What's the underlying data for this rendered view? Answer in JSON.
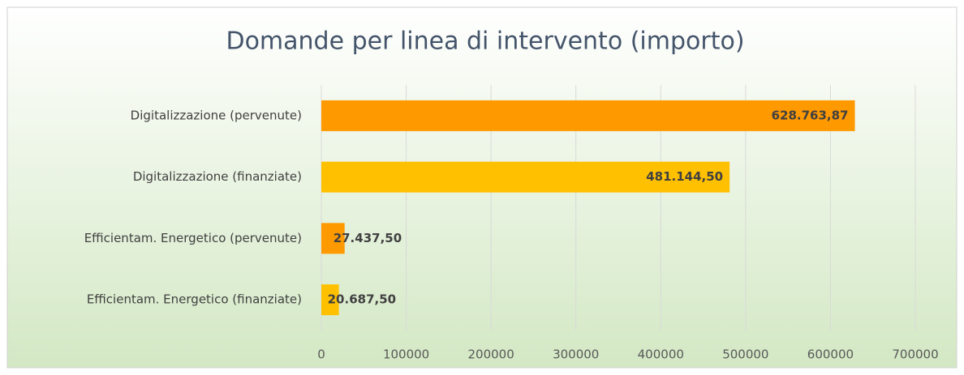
{
  "chart_data": {
    "type": "hbar",
    "title": "Domande per linea di intervento (importo)",
    "categories": [
      "Digitalizzazione (pervenute)",
      "Digitalizzazione (finanziate)",
      "Efficientam. Energetico (pervenute)",
      "Efficientam. Energetico (finanziate)"
    ],
    "values": [
      628763.87,
      481144.5,
      27437.5,
      20687.5
    ],
    "value_labels": [
      "628.763,87",
      "481.144,50",
      "27.437,50",
      "20.687,50"
    ],
    "colors": [
      "#ff9900",
      "#ffc000",
      "#ff9900",
      "#ffc000"
    ],
    "xlim": [
      0,
      700000
    ],
    "xticks": [
      0,
      100000,
      200000,
      300000,
      400000,
      500000,
      600000,
      700000
    ],
    "grid": true
  }
}
